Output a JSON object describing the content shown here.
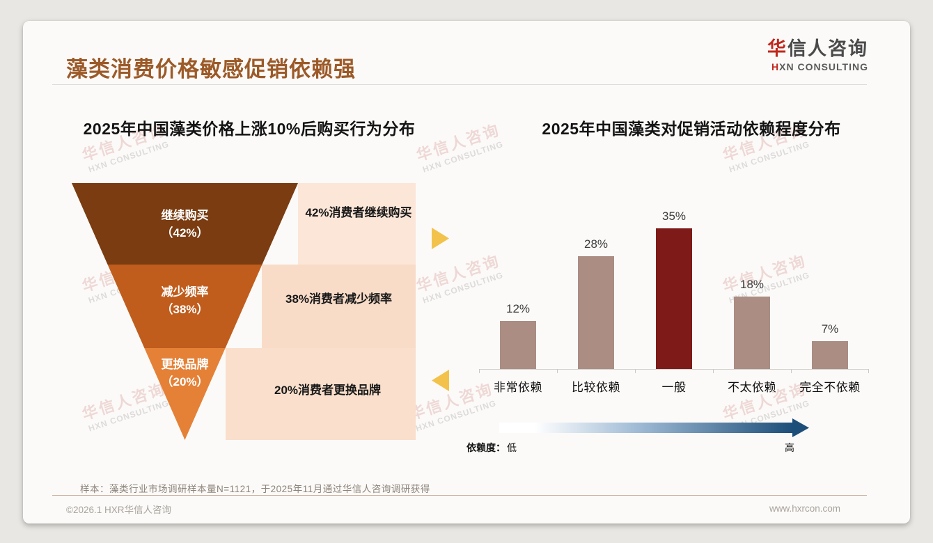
{
  "page_title": "藻类消费价格敏感促销依赖强",
  "logo": {
    "zh_accent": "华",
    "zh_rest": "信人咨询",
    "en_accent": "H",
    "en_rest": "XN CONSULTING"
  },
  "watermark": {
    "zh": "华信人咨询",
    "en": "HXN CONSULTING"
  },
  "colors": {
    "title_brown": "#9c5a28",
    "logo_accent_red": "#c0281e",
    "bar_normal": "#ab8d83",
    "bar_highlight": "#7e1b18",
    "arrow_yellow": "#f2c24a",
    "gradient_from": "#ffffff",
    "gradient_mid": "#9db9d4",
    "gradient_to": "#1d4e79",
    "footer_divider_tan": "#c7ad97"
  },
  "footnote": "样本：藻类行业市场调研样本量N=1121，于2025年11月通过华信人咨询调研获得",
  "footer": {
    "left": "©2026.1 HXR华信人咨询",
    "right": "www.hxrcon.com"
  },
  "chart_data": [
    {
      "type": "funnel",
      "title": "2025年中国藻类价格上涨10%后购买行为分布",
      "segments": [
        {
          "label": "继续购买",
          "value": 42,
          "value_label": "（42%）",
          "annotation": "42%消费者继续购买",
          "color": "#7a3c10",
          "band_color": "#fbe6d8"
        },
        {
          "label": "减少频率",
          "value": 38,
          "value_label": "（38%）",
          "annotation": "38%消费者减少频率",
          "color": "#c05d1d",
          "band_color": "#f8dcc8"
        },
        {
          "label": "更换品牌",
          "value": 20,
          "value_label": "（20%）",
          "annotation": "20%消费者更换品牌",
          "color": "#e48137",
          "band_color": "#f9dfcc"
        }
      ]
    },
    {
      "type": "bar",
      "title": "2025年中国藻类对促销活动依赖程度分布",
      "categories": [
        "非常依赖",
        "比较依赖",
        "一般",
        "不太依赖",
        "完全不依赖"
      ],
      "values": [
        12,
        28,
        35,
        18,
        7
      ],
      "value_labels": [
        "12%",
        "28%",
        "35%",
        "18%",
        "7%"
      ],
      "highlight_index": 2,
      "ylim": [
        0,
        40
      ],
      "grid": false,
      "legend_position": "none",
      "axis_note": {
        "label": "依赖度：",
        "low": "低",
        "high": "高"
      }
    }
  ]
}
